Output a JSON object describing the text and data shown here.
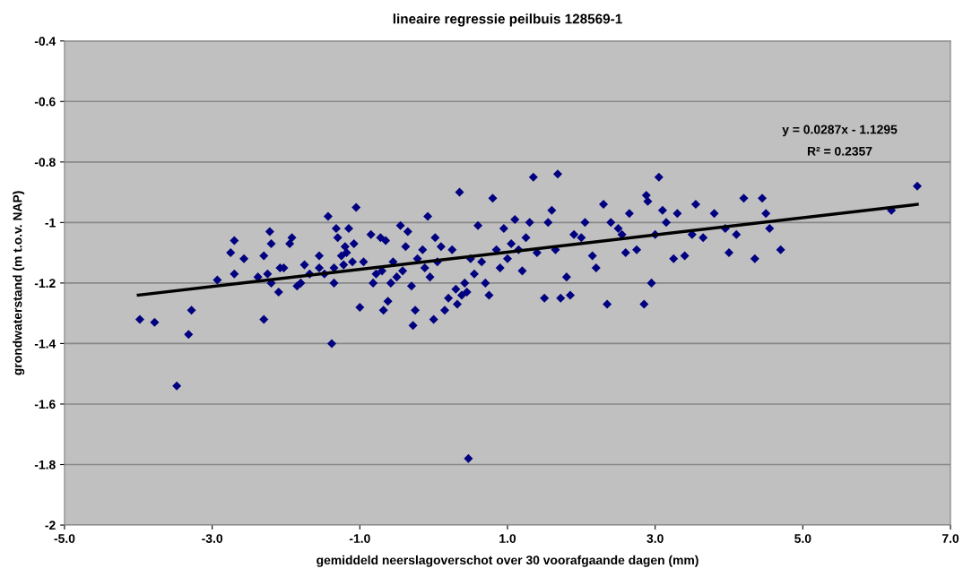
{
  "chart_data": {
    "type": "scatter",
    "title": "lineaire regressie peilbuis 128569-1",
    "xlabel": "gemiddeld neerslagoverschot over 30 voorafgaande dagen (mm)",
    "ylabel": "grondwaterstand (m t.o.v. NAP)",
    "annotations": [
      "y = 0.0287x - 1.1295",
      "R² = 0.2357"
    ],
    "xlim": [
      -5,
      7
    ],
    "ylim": [
      -2,
      -0.4
    ],
    "xticks": [
      {
        "value": -5,
        "label": "-5.0"
      },
      {
        "value": -3,
        "label": "-3.0"
      },
      {
        "value": -1,
        "label": "-1.0"
      },
      {
        "value": 1,
        "label": "1.0"
      },
      {
        "value": 3,
        "label": "3.0"
      },
      {
        "value": 5,
        "label": "5.0"
      },
      {
        "value": 7,
        "label": "7.0"
      }
    ],
    "yticks": [
      -2,
      -1.8,
      -1.6,
      -1.4,
      -1.2,
      -1,
      -0.8,
      -0.6,
      -0.4
    ],
    "grid": "y",
    "legend": false,
    "series": [
      {
        "color": "#000080",
        "marker": "diamond",
        "x": [
          -3.98,
          -3.78,
          -3.48,
          -3.32,
          -3.28,
          -2.93,
          -2.75,
          -2.7,
          -2.7,
          -2.57,
          -2.38,
          -2.3,
          -2.3,
          -2.25,
          -2.22,
          -2.2,
          -2.2,
          -2.1,
          -2.08,
          -2.03,
          -1.95,
          -1.92,
          -1.85,
          -1.8,
          -1.75,
          -1.68,
          -1.55,
          -1.55,
          -1.48,
          -1.43,
          -1.38,
          -1.35,
          -1.35,
          -1.32,
          -1.3,
          -1.25,
          -1.22,
          -1.2,
          -1.18,
          -1.15,
          -1.1,
          -1.08,
          -1.05,
          -1.0,
          -0.95,
          -0.85,
          -0.82,
          -0.78,
          -0.72,
          -0.7,
          -0.68,
          -0.65,
          -0.62,
          -0.58,
          -0.55,
          -0.5,
          -0.45,
          -0.42,
          -0.38,
          -0.35,
          -0.3,
          -0.28,
          -0.25,
          -0.22,
          -0.15,
          -0.12,
          -0.08,
          -0.05,
          0.0,
          0.02,
          0.05,
          0.1,
          0.15,
          0.2,
          0.25,
          0.3,
          0.32,
          0.35,
          0.38,
          0.42,
          0.45,
          0.47,
          0.5,
          0.55,
          0.6,
          0.65,
          0.7,
          0.75,
          0.8,
          0.85,
          0.9,
          0.95,
          1.0,
          1.05,
          1.1,
          1.15,
          1.2,
          1.25,
          1.3,
          1.35,
          1.4,
          1.5,
          1.55,
          1.6,
          1.65,
          1.68,
          1.72,
          1.8,
          1.85,
          1.9,
          2.0,
          2.05,
          2.15,
          2.2,
          2.3,
          2.35,
          2.4,
          2.5,
          2.55,
          2.6,
          2.65,
          2.75,
          2.85,
          2.88,
          2.9,
          2.95,
          3.0,
          3.05,
          3.1,
          3.15,
          3.25,
          3.3,
          3.4,
          3.5,
          3.55,
          3.65,
          3.8,
          3.95,
          4.0,
          4.1,
          4.2,
          4.35,
          4.45,
          4.5,
          4.55,
          4.7,
          6.2,
          6.55
        ],
        "values": [
          -1.32,
          -1.33,
          -1.54,
          -1.37,
          -1.29,
          -1.19,
          -1.1,
          -1.06,
          -1.17,
          -1.12,
          -1.18,
          -1.11,
          -1.32,
          -1.17,
          -1.03,
          -1.07,
          -1.2,
          -1.23,
          -1.15,
          -1.15,
          -1.07,
          -1.05,
          -1.21,
          -1.2,
          -1.14,
          -1.17,
          -1.11,
          -1.15,
          -1.17,
          -0.98,
          -1.4,
          -1.15,
          -1.2,
          -1.02,
          -1.05,
          -1.11,
          -1.14,
          -1.08,
          -1.1,
          -1.02,
          -1.13,
          -1.07,
          -0.95,
          -1.28,
          -1.13,
          -1.04,
          -1.2,
          -1.17,
          -1.05,
          -1.16,
          -1.29,
          -1.06,
          -1.26,
          -1.2,
          -1.13,
          -1.18,
          -1.01,
          -1.16,
          -1.08,
          -1.03,
          -1.21,
          -1.34,
          -1.29,
          -1.12,
          -1.09,
          -1.15,
          -0.98,
          -1.18,
          -1.32,
          -1.05,
          -1.13,
          -1.08,
          -1.29,
          -1.25,
          -1.09,
          -1.22,
          -1.27,
          -0.9,
          -1.24,
          -1.2,
          -1.23,
          -1.78,
          -1.12,
          -1.17,
          -1.01,
          -1.13,
          -1.2,
          -1.24,
          -0.92,
          -1.09,
          -1.15,
          -1.02,
          -1.12,
          -1.07,
          -0.99,
          -1.09,
          -1.16,
          -1.05,
          -1.0,
          -0.85,
          -1.1,
          -1.25,
          -1.0,
          -0.96,
          -1.09,
          -0.84,
          -1.25,
          -1.18,
          -1.24,
          -1.04,
          -1.05,
          -1.0,
          -1.11,
          -1.15,
          -0.94,
          -1.27,
          -1.0,
          -1.02,
          -1.04,
          -1.1,
          -0.97,
          -1.09,
          -1.27,
          -0.91,
          -0.93,
          -1.2,
          -1.04,
          -0.85,
          -0.96,
          -1.0,
          -1.12,
          -0.97,
          -1.11,
          -1.04,
          -0.94,
          -1.05,
          -0.97,
          -1.02,
          -1.1,
          -1.04,
          -0.92,
          -1.12,
          -0.92,
          -0.97,
          -1.02,
          -1.09,
          -0.96,
          -0.88
        ]
      },
      {
        "type": "line",
        "color": "#000000",
        "marker": "none",
        "line_style": "solid",
        "x": [
          -4.0,
          6.55
        ],
        "values": [
          -1.24,
          -0.94
        ]
      }
    ]
  }
}
